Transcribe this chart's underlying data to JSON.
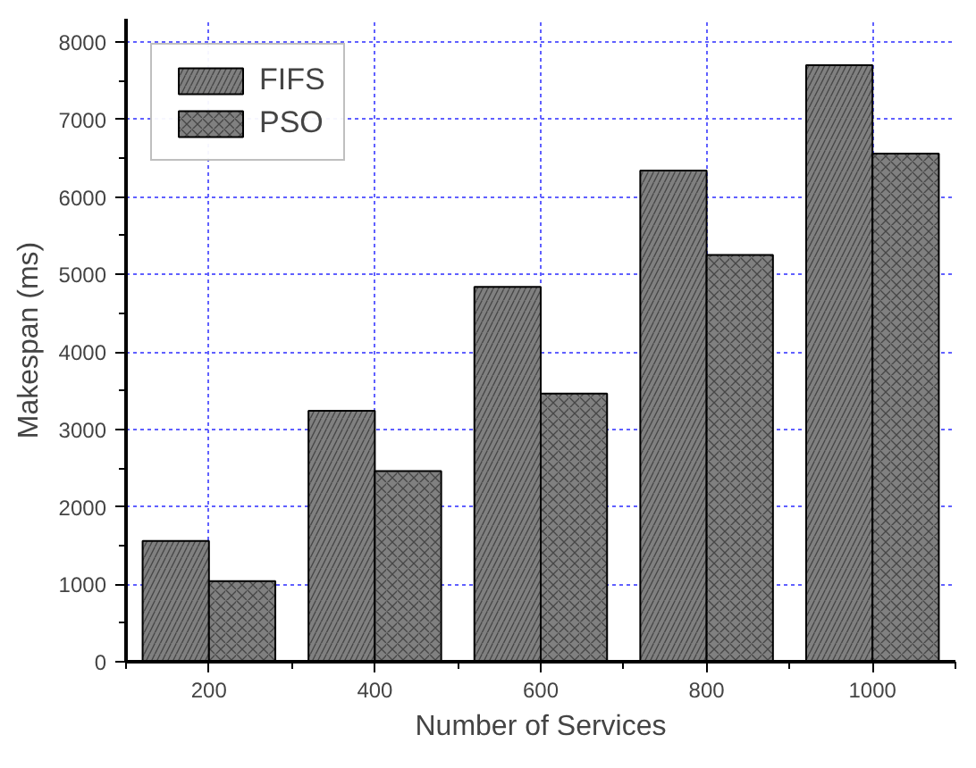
{
  "chart_data": {
    "type": "bar",
    "xlabel": "Number of Services",
    "ylabel": "Makespan (ms)",
    "categories": [
      "200",
      "400",
      "600",
      "800",
      "1000"
    ],
    "series": [
      {
        "name": "FIFS",
        "color": "#808080",
        "values": [
          1560,
          3240,
          4840,
          6340,
          7700
        ]
      },
      {
        "name": "PSO",
        "color": "#808080",
        "values": [
          1040,
          2460,
          3460,
          5250,
          6560
        ]
      }
    ],
    "ylim": [
      0,
      8300
    ],
    "yticks": [
      0,
      1000,
      2000,
      3000,
      4000,
      5000,
      6000,
      7000,
      8000
    ],
    "grid": true,
    "legend": "top left"
  }
}
